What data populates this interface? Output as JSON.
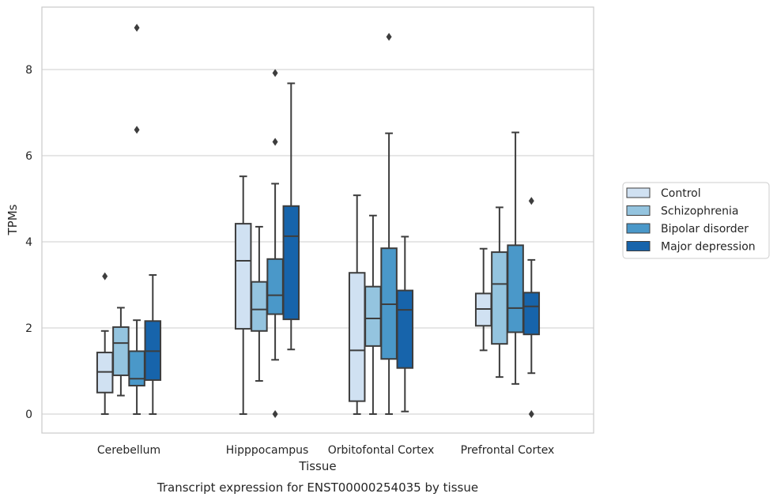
{
  "chart_data": {
    "type": "box",
    "title": "",
    "caption": "Transcript expression for ENST00000254035 by tissue",
    "xlabel": "Tissue",
    "ylabel": "TPMs",
    "ylim": [
      -0.45,
      9.55
    ],
    "yticks": [
      0,
      2,
      4,
      6,
      8
    ],
    "ytick_labels": [
      "0",
      "2",
      "4",
      "6",
      "8"
    ],
    "grid": "horizontal",
    "legend_position": "right",
    "categories": [
      "Cerebellum",
      "Hipppocampus",
      "Orbitofontal Cortex",
      "Prefrontal Cortex"
    ],
    "series": [
      {
        "name": "Control",
        "color": "#d0e1f2",
        "boxes": [
          {
            "whislo": 0.0,
            "q1": 0.5,
            "med": 0.98,
            "q3": 1.43,
            "whishi": 1.93,
            "fliers": [
              3.2
            ]
          },
          {
            "whislo": 0.0,
            "q1": 1.98,
            "med": 3.56,
            "q3": 4.42,
            "whishi": 5.52,
            "fliers": []
          },
          {
            "whislo": 0.0,
            "q1": 0.3,
            "med": 1.48,
            "q3": 3.28,
            "whishi": 5.08,
            "fliers": []
          },
          {
            "whislo": 1.48,
            "q1": 2.05,
            "med": 2.44,
            "q3": 2.8,
            "whishi": 3.84,
            "fliers": []
          }
        ]
      },
      {
        "name": "Schizophrenia",
        "color": "#94c4df",
        "boxes": [
          {
            "whislo": 0.43,
            "q1": 0.9,
            "med": 1.65,
            "q3": 2.02,
            "whishi": 2.47,
            "fliers": []
          },
          {
            "whislo": 0.77,
            "q1": 1.93,
            "med": 2.43,
            "q3": 3.07,
            "whishi": 4.35,
            "fliers": []
          },
          {
            "whislo": 0.0,
            "q1": 1.58,
            "med": 2.22,
            "q3": 2.96,
            "whishi": 4.61,
            "fliers": []
          },
          {
            "whislo": 0.86,
            "q1": 1.63,
            "med": 3.02,
            "q3": 3.76,
            "whishi": 4.8,
            "fliers": []
          }
        ]
      },
      {
        "name": "Bipolar disorder",
        "color": "#4a98c9",
        "boxes": [
          {
            "whislo": 0.0,
            "q1": 0.66,
            "med": 0.82,
            "q3": 1.46,
            "whishi": 2.18,
            "fliers": [
              6.6,
              8.97
            ]
          },
          {
            "whislo": 1.26,
            "q1": 2.32,
            "med": 2.76,
            "q3": 3.6,
            "whishi": 5.35,
            "fliers": [
              0.0,
              6.32,
              7.92
            ]
          },
          {
            "whislo": 0.0,
            "q1": 1.28,
            "med": 2.55,
            "q3": 3.85,
            "whishi": 6.52,
            "fliers": [
              8.76
            ]
          },
          {
            "whislo": 0.7,
            "q1": 1.9,
            "med": 2.46,
            "q3": 3.92,
            "whishi": 6.54,
            "fliers": []
          }
        ]
      },
      {
        "name": "Major depression",
        "color": "#1764ab",
        "boxes": [
          {
            "whislo": 0.0,
            "q1": 0.79,
            "med": 1.46,
            "q3": 2.16,
            "whishi": 3.23,
            "fliers": []
          },
          {
            "whislo": 1.5,
            "q1": 2.2,
            "med": 4.13,
            "q3": 4.83,
            "whishi": 7.68,
            "fliers": []
          },
          {
            "whislo": 0.06,
            "q1": 1.07,
            "med": 2.42,
            "q3": 2.87,
            "whishi": 4.12,
            "fliers": []
          },
          {
            "whislo": 0.95,
            "q1": 1.85,
            "med": 2.5,
            "q3": 2.82,
            "whishi": 3.58,
            "fliers": [
              0.0,
              4.95
            ]
          }
        ]
      }
    ]
  }
}
